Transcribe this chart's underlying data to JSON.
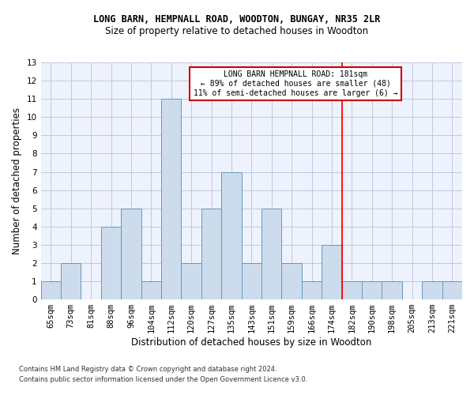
{
  "title": "LONG BARN, HEMPNALL ROAD, WOODTON, BUNGAY, NR35 2LR",
  "subtitle": "Size of property relative to detached houses in Woodton",
  "xlabel": "Distribution of detached houses by size in Woodton",
  "ylabel": "Number of detached properties",
  "categories": [
    "65sqm",
    "73sqm",
    "81sqm",
    "88sqm",
    "96sqm",
    "104sqm",
    "112sqm",
    "120sqm",
    "127sqm",
    "135sqm",
    "143sqm",
    "151sqm",
    "159sqm",
    "166sqm",
    "174sqm",
    "182sqm",
    "190sqm",
    "198sqm",
    "205sqm",
    "213sqm",
    "221sqm"
  ],
  "values": [
    1,
    2,
    0,
    4,
    5,
    1,
    11,
    2,
    5,
    7,
    2,
    5,
    2,
    1,
    3,
    1,
    1,
    1,
    0,
    1,
    1
  ],
  "bar_color": "#ccdcec",
  "bar_edge_color": "#6699bb",
  "ylim": [
    0,
    13
  ],
  "yticks": [
    0,
    1,
    2,
    3,
    4,
    5,
    6,
    7,
    8,
    9,
    10,
    11,
    12,
    13
  ],
  "red_line_index": 15,
  "annotation_text": "LONG BARN HEMPNALL ROAD: 181sqm\n← 89% of detached houses are smaller (48)\n11% of semi-detached houses are larger (6) →",
  "annotation_box_color": "#cc0000",
  "footer_line1": "Contains HM Land Registry data © Crown copyright and database right 2024.",
  "footer_line2": "Contains public sector information licensed under the Open Government Licence v3.0.",
  "background_color": "#eef2fc",
  "grid_color": "#c0c8e0",
  "title_fontsize": 8.5,
  "subtitle_fontsize": 8.5,
  "tick_fontsize": 7.5,
  "ylabel_fontsize": 8.5,
  "xlabel_fontsize": 8.5
}
